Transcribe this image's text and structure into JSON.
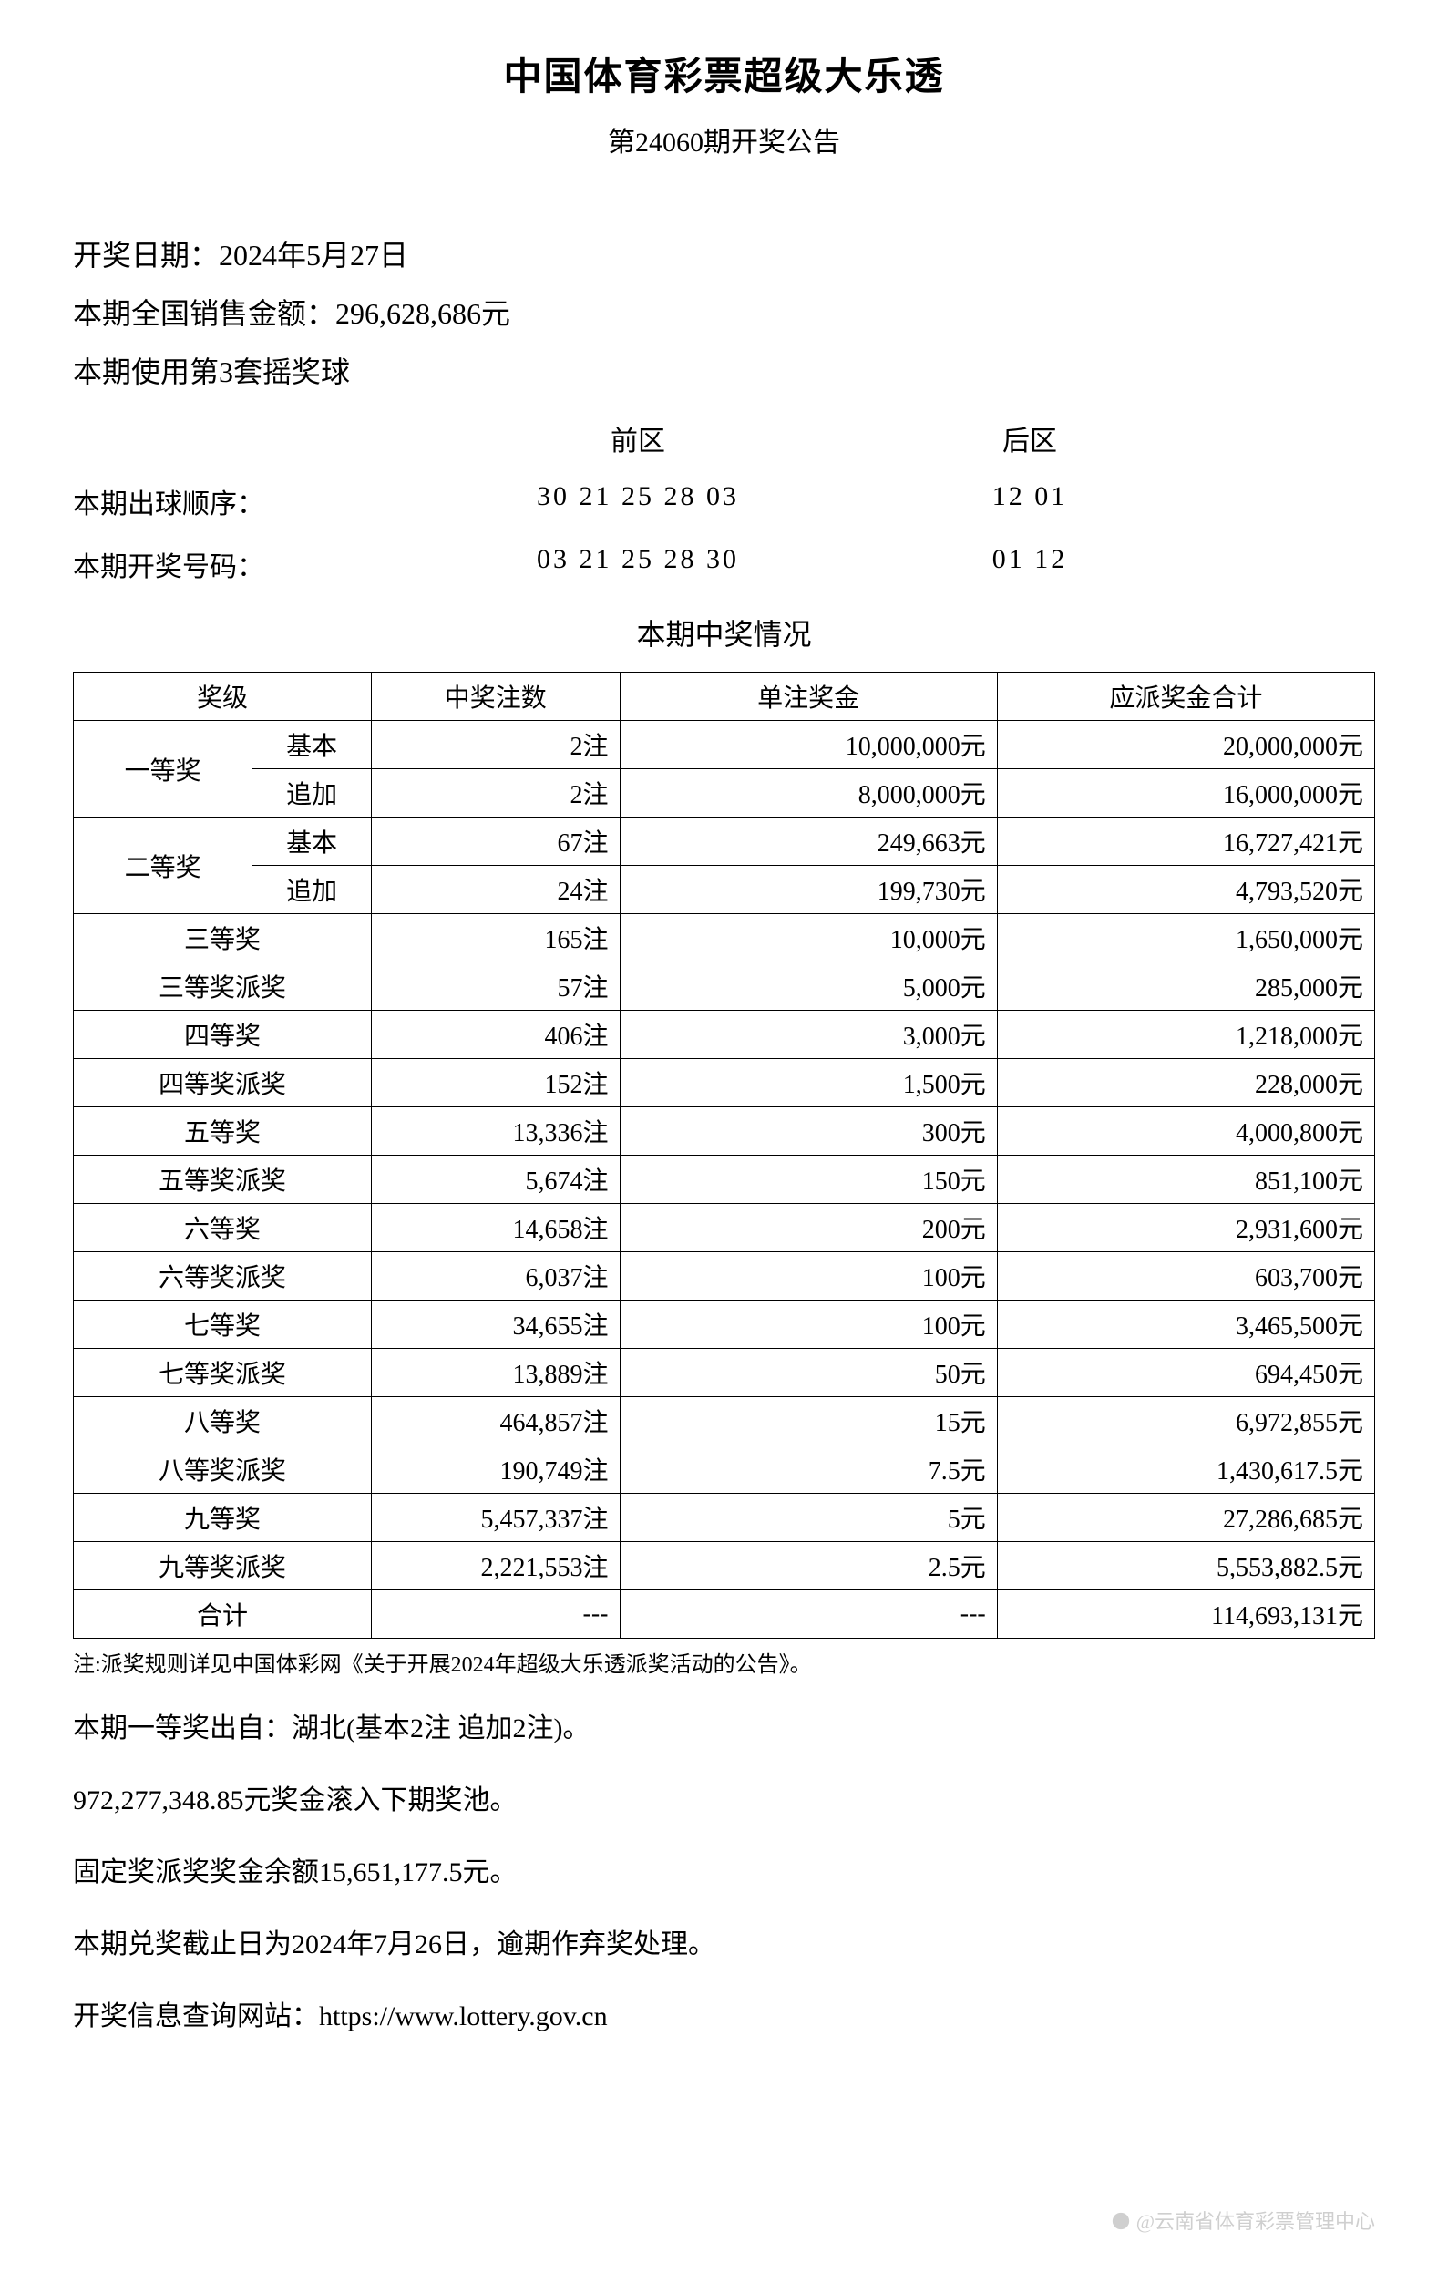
{
  "header": {
    "title": "中国体育彩票超级大乐透",
    "subtitle": "第24060期开奖公告"
  },
  "info": {
    "date_label": "开奖日期：",
    "date_value": "2024年5月27日",
    "sales_label": "本期全国销售金额：",
    "sales_value": "296,628,686元",
    "ballset": "本期使用第3套摇奖球"
  },
  "numbers": {
    "front_label": "前区",
    "back_label": "后区",
    "draw_order": {
      "label": "本期出球顺序：",
      "front": "30  21  25  28  03",
      "back": "12  01"
    },
    "winning": {
      "label": "本期开奖号码：",
      "front": "03  21  25  28  30",
      "back": "01  12"
    }
  },
  "prize_section_title": "本期中奖情况",
  "table": {
    "columns": {
      "tier": "奖级",
      "count": "中奖注数",
      "amount": "单注奖金",
      "total": "应派奖金合计"
    },
    "rows": [
      {
        "tier": "一等奖",
        "type": "基本",
        "count": "2注",
        "amount": "10,000,000元",
        "total": "20,000,000元",
        "rowspan": 2
      },
      {
        "tier": "",
        "type": "追加",
        "count": "2注",
        "amount": "8,000,000元",
        "total": "16,000,000元"
      },
      {
        "tier": "二等奖",
        "type": "基本",
        "count": "67注",
        "amount": "249,663元",
        "total": "16,727,421元",
        "rowspan": 2
      },
      {
        "tier": "",
        "type": "追加",
        "count": "24注",
        "amount": "199,730元",
        "total": "4,793,520元"
      },
      {
        "tier": "三等奖",
        "type": null,
        "count": "165注",
        "amount": "10,000元",
        "total": "1,650,000元"
      },
      {
        "tier": "三等奖派奖",
        "type": null,
        "count": "57注",
        "amount": "5,000元",
        "total": "285,000元"
      },
      {
        "tier": "四等奖",
        "type": null,
        "count": "406注",
        "amount": "3,000元",
        "total": "1,218,000元"
      },
      {
        "tier": "四等奖派奖",
        "type": null,
        "count": "152注",
        "amount": "1,500元",
        "total": "228,000元"
      },
      {
        "tier": "五等奖",
        "type": null,
        "count": "13,336注",
        "amount": "300元",
        "total": "4,000,800元"
      },
      {
        "tier": "五等奖派奖",
        "type": null,
        "count": "5,674注",
        "amount": "150元",
        "total": "851,100元"
      },
      {
        "tier": "六等奖",
        "type": null,
        "count": "14,658注",
        "amount": "200元",
        "total": "2,931,600元"
      },
      {
        "tier": "六等奖派奖",
        "type": null,
        "count": "6,037注",
        "amount": "100元",
        "total": "603,700元"
      },
      {
        "tier": "七等奖",
        "type": null,
        "count": "34,655注",
        "amount": "100元",
        "total": "3,465,500元"
      },
      {
        "tier": "七等奖派奖",
        "type": null,
        "count": "13,889注",
        "amount": "50元",
        "total": "694,450元"
      },
      {
        "tier": "八等奖",
        "type": null,
        "count": "464,857注",
        "amount": "15元",
        "total": "6,972,855元"
      },
      {
        "tier": "八等奖派奖",
        "type": null,
        "count": "190,749注",
        "amount": "7.5元",
        "total": "1,430,617.5元"
      },
      {
        "tier": "九等奖",
        "type": null,
        "count": "5,457,337注",
        "amount": "5元",
        "total": "27,286,685元"
      },
      {
        "tier": "九等奖派奖",
        "type": null,
        "count": "2,221,553注",
        "amount": "2.5元",
        "total": "5,553,882.5元"
      },
      {
        "tier": "合计",
        "type": null,
        "count": "---",
        "amount": "---",
        "total": "114,693,131元"
      }
    ]
  },
  "note": "注:派奖规则详见中国体彩网《关于开展2024年超级大乐透派奖活动的公告》。",
  "footer": {
    "line1": "本期一等奖出自：湖北(基本2注 追加2注)。",
    "line2": "972,277,348.85元奖金滚入下期奖池。",
    "line3": "固定奖派奖奖金余额15,651,177.5元。",
    "line4": "本期兑奖截止日为2024年7月26日，逾期作弃奖处理。",
    "line5": "开奖信息查询网站：https://www.lottery.gov.cn"
  },
  "watermark": "@云南省体育彩票管理中心",
  "style": {
    "background_color": "#ffffff",
    "text_color": "#000000",
    "border_color": "#000000",
    "title_fontsize": 42,
    "body_fontsize": 30,
    "table_fontsize": 28,
    "note_fontsize": 24
  }
}
